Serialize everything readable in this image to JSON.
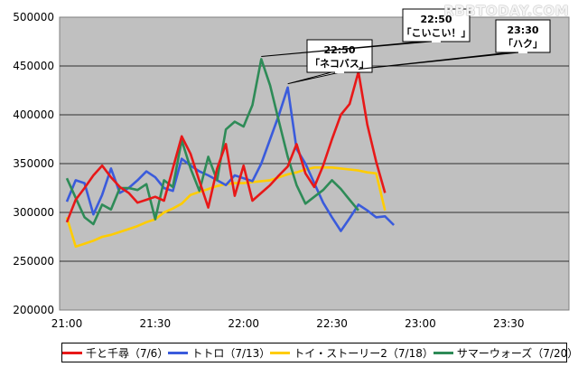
{
  "watermark": "RBBTODAY.COM",
  "chart_data": {
    "type": "line",
    "x": [
      "21:00",
      "21:03",
      "21:06",
      "21:09",
      "21:12",
      "21:15",
      "21:18",
      "21:21",
      "21:24",
      "21:27",
      "21:30",
      "21:33",
      "21:36",
      "21:39",
      "21:42",
      "21:45",
      "21:48",
      "21:51",
      "21:54",
      "21:57",
      "22:00",
      "22:03",
      "22:06",
      "22:09",
      "22:12",
      "22:15",
      "22:18",
      "22:21",
      "22:24",
      "22:27",
      "22:30",
      "22:33",
      "22:36",
      "22:39",
      "22:42",
      "22:45",
      "22:48",
      "22:51",
      "22:54",
      "22:57",
      "23:00",
      "23:03",
      "23:06",
      "23:09",
      "23:12",
      "23:15",
      "23:18",
      "23:21",
      "23:24",
      "23:27",
      "23:30",
      "23:33",
      "23:36",
      "23:39",
      "23:42",
      "23:45",
      "23:48"
    ],
    "x_tick_labels": [
      "21:00",
      "21:30",
      "22:00",
      "22:30",
      "23:00",
      "23:30"
    ],
    "ylim": [
      200000,
      500000
    ],
    "y_ticks": [
      "200000",
      "250000",
      "300000",
      "350000",
      "400000",
      "450000",
      "500000"
    ],
    "grid": "horizontal",
    "legend_position": "bottom",
    "series": [
      {
        "name": "千と千尋（7/6）",
        "color": "#e81818",
        "values": [
          290000,
          313000,
          325000,
          338000,
          348000,
          336000,
          326000,
          320000,
          310000,
          313000,
          316000,
          312000,
          345000,
          378000,
          360000,
          332000,
          305000,
          345000,
          370000,
          317000,
          348000,
          312000,
          320000,
          328000,
          338000,
          347000,
          370000,
          340000,
          326000,
          348000,
          375000,
          400000,
          411000,
          444000,
          390000,
          352000,
          320000,
          null,
          null,
          null,
          null,
          null,
          null,
          null,
          null,
          null,
          null,
          null,
          null,
          null,
          null,
          null,
          null,
          null,
          null,
          null,
          null
        ]
      },
      {
        "name": "トトロ（7/13）",
        "color": "#3a5bdc",
        "values": [
          311000,
          333000,
          330000,
          298000,
          318000,
          345000,
          320000,
          325000,
          333000,
          342000,
          336000,
          325000,
          322000,
          355000,
          348000,
          342000,
          338000,
          333000,
          328000,
          338000,
          335000,
          332000,
          350000,
          375000,
          400000,
          428000,
          365000,
          350000,
          330000,
          310000,
          295000,
          281000,
          294000,
          308000,
          302000,
          295000,
          296000,
          287000,
          null,
          null,
          null,
          null,
          null,
          null,
          null,
          null,
          null,
          null,
          null,
          null,
          null,
          null,
          null,
          null,
          null,
          null,
          null
        ]
      },
      {
        "name": "トイ・ストーリー2（7/18）",
        "color": "#ffcc00",
        "values": [
          295000,
          265000,
          268000,
          271000,
          275000,
          277000,
          280000,
          283000,
          286000,
          290000,
          293000,
          300000,
          304000,
          309000,
          318000,
          321000,
          324000,
          327000,
          329000,
          330000,
          330000,
          331000,
          332000,
          333000,
          336000,
          339000,
          341000,
          344000,
          346000,
          346000,
          346000,
          345000,
          344000,
          343000,
          341000,
          340000,
          302000,
          null,
          null,
          null,
          null,
          null,
          null,
          null,
          null,
          null,
          null,
          null,
          null,
          null,
          null,
          null,
          null,
          null,
          null,
          null,
          null
        ]
      },
      {
        "name": "サマーウォーズ（7/20）",
        "color": "#2e8b57",
        "values": [
          335000,
          315000,
          295000,
          288000,
          308000,
          303000,
          325000,
          325000,
          323000,
          329000,
          293000,
          333000,
          326000,
          374000,
          345000,
          322000,
          357000,
          333000,
          385000,
          393000,
          388000,
          410000,
          457000,
          430000,
          393000,
          357000,
          328000,
          309000,
          316000,
          323000,
          333000,
          324000,
          313000,
          302000,
          null,
          null,
          null,
          null,
          null,
          null,
          null,
          null,
          null,
          null,
          null,
          null,
          null,
          null,
          null,
          null,
          null,
          null,
          null,
          null,
          null,
          null,
          null
        ]
      }
    ],
    "annotations": [
      {
        "time_line1": "22:50",
        "label_line2": "「ネコバス」"
      },
      {
        "time_line1": "22:50",
        "label_line2": "「こいこい！」"
      },
      {
        "time_line1": "23:30",
        "label_line2": "「ハク」"
      }
    ]
  }
}
